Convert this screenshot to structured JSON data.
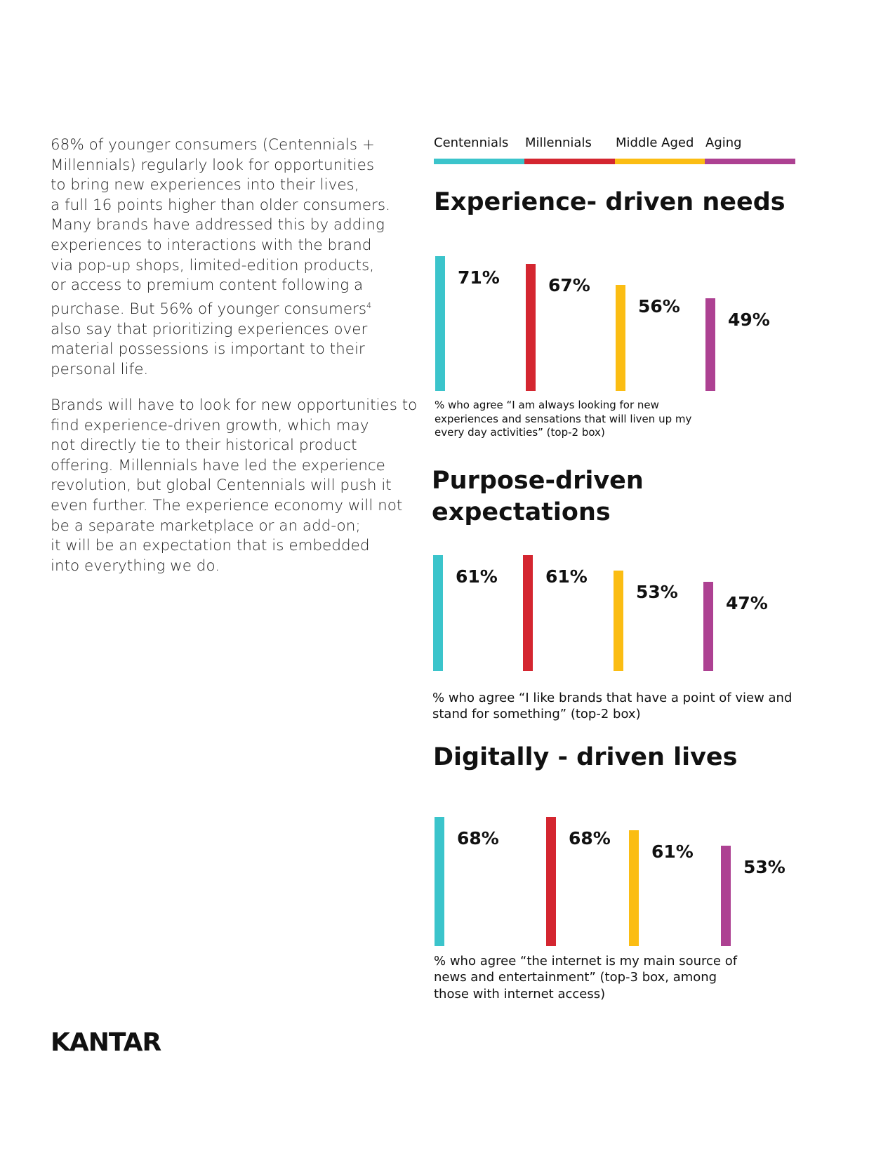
{
  "body": {
    "paragraph1": [
      "68% of younger consumers (Centennials +",
      "Millennials) regularly look for opportunities",
      "to bring new experiences into their lives,",
      "a full 16 points higher than older consumers.",
      "Many brands have addressed this by adding",
      "experiences to interactions with the brand",
      " via pop-up shops, limited-edition products,",
      "or access to premium content following a",
      "purchase. But 56% of younger consumers",
      "also say that prioritizing experiences over",
      "material possessions is important to their",
      "personal life."
    ],
    "footnote_mark": "4",
    "paragraph2": [
      "Brands will have to look for new opportunities to",
      "find experience-driven growth, which may",
      "not directly tie to their historical product",
      "offering. Millennials have led the experience",
      "revolution, but global Centennials will push it",
      "even further. The experience economy will not",
      "be a separate marketplace or an add-on;",
      "it will be an expectation that is embedded",
      "into everything we do."
    ]
  },
  "legend": [
    {
      "label": "Centennials",
      "color": "#3bc4cb"
    },
    {
      "label": "Millennials",
      "color": "#d42630"
    },
    {
      "label": "Middle Aged",
      "color": "#fbbd13"
    },
    {
      "label": "Aging",
      "color": "#ad4192"
    }
  ],
  "chart_data": [
    {
      "type": "bar",
      "title": "Experience- driven needs",
      "note": "% who agree “I am always looking for new experiences and sensations that will liven up my every day activities” (top-2 box)",
      "values": [
        71,
        67,
        56,
        49
      ],
      "value_labels": [
        "71%",
        "67%",
        "56%",
        "49%"
      ]
    },
    {
      "type": "bar",
      "title": "Purpose-driven expectations",
      "note": "% who agree “I like brands that have a point of view and stand for something” (top-2 box)",
      "values": [
        61,
        61,
        53,
        47
      ],
      "value_labels": [
        "61%",
        "61%",
        "53%",
        "47%"
      ]
    },
    {
      "type": "bar",
      "title": "Digitally - driven lives",
      "note": "% who agree “the internet is my main source of news and entertainment” (top-3 box, among those with internet access)",
      "values": [
        68,
        68,
        61,
        53
      ],
      "value_labels": [
        "68%",
        "68%",
        "61%",
        "53%"
      ]
    }
  ],
  "footer": {
    "logo": "KANTAR"
  }
}
